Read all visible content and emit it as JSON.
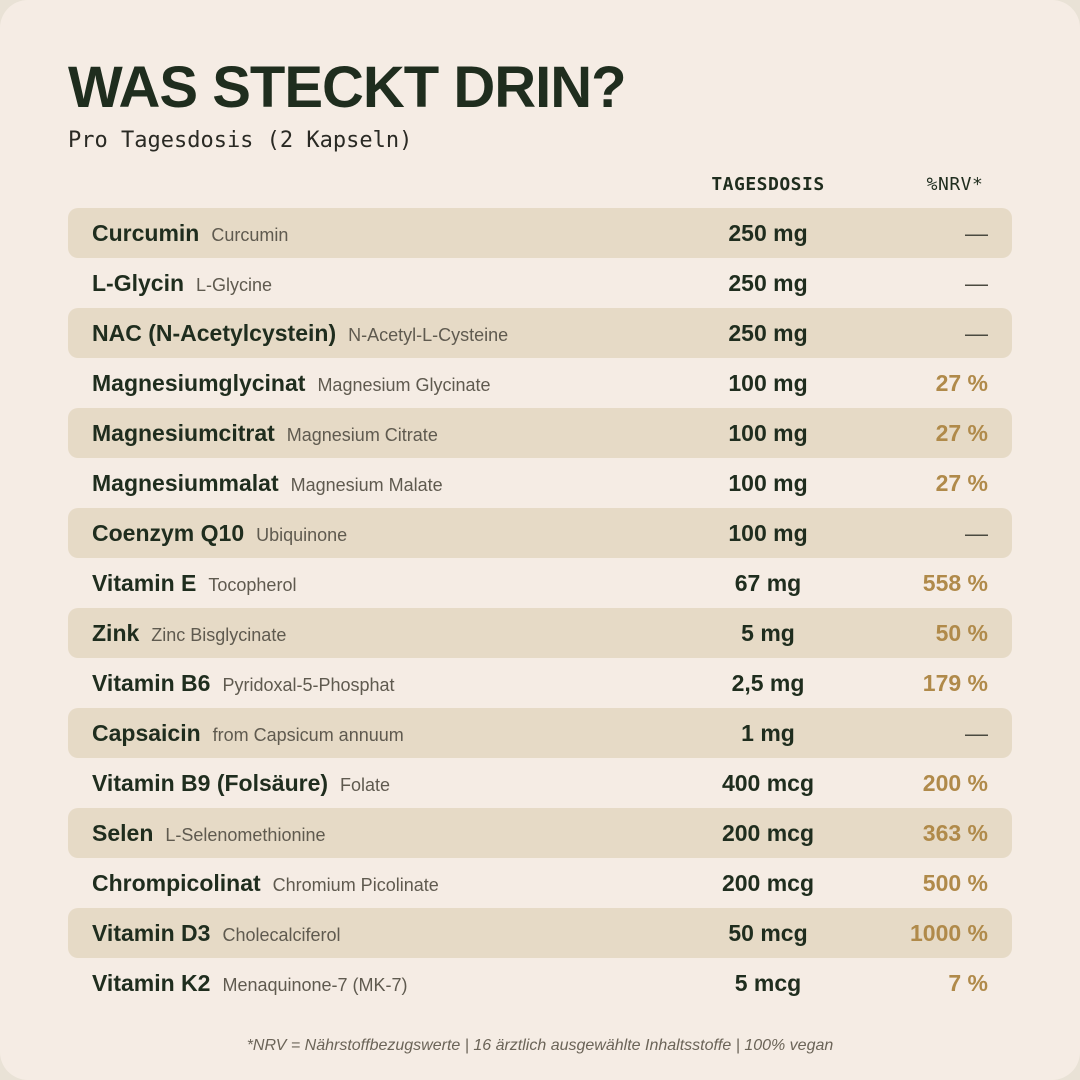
{
  "title": "WAS STECKT DRIN?",
  "subtitle": "Pro Tagesdosis (2 Kapseln)",
  "columns": {
    "dose": "TAGESDOSIS",
    "nrv": "%NRV*"
  },
  "rows": [
    {
      "de": "Curcumin",
      "en": "Curcumin",
      "dose": "250 mg",
      "nrv": "—"
    },
    {
      "de": "L-Glycin",
      "en": "L-Glycine",
      "dose": "250 mg",
      "nrv": "—"
    },
    {
      "de": "NAC (N-Acetylcystein)",
      "en": "N-Acetyl-L-Cysteine",
      "dose": "250 mg",
      "nrv": "—"
    },
    {
      "de": "Magnesiumglycinat",
      "en": "Magnesium Glycinate",
      "dose": "100 mg",
      "nrv": "27 %"
    },
    {
      "de": "Magnesiumcitrat",
      "en": "Magnesium Citrate",
      "dose": "100 mg",
      "nrv": "27 %"
    },
    {
      "de": "Magnesiummalat",
      "en": "Magnesium Malate",
      "dose": "100 mg",
      "nrv": "27 %"
    },
    {
      "de": "Coenzym Q10",
      "en": "Ubiquinone",
      "dose": "100 mg",
      "nrv": "—"
    },
    {
      "de": "Vitamin E",
      "en": "Tocopherol",
      "dose": "67 mg",
      "nrv": "558 %"
    },
    {
      "de": "Zink",
      "en": "Zinc Bisglycinate",
      "dose": "5 mg",
      "nrv": "50 %"
    },
    {
      "de": "Vitamin B6",
      "en": "Pyridoxal-5-Phosphat",
      "dose": "2,5 mg",
      "nrv": "179 %"
    },
    {
      "de": "Capsaicin",
      "en": "from Capsicum annuum",
      "dose": "1 mg",
      "nrv": "—"
    },
    {
      "de": "Vitamin B9 (Folsäure)",
      "en": "Folate",
      "dose": "400 mcg",
      "nrv": "200 %"
    },
    {
      "de": "Selen",
      "en": "L-Selenomethionine",
      "dose": "200 mcg",
      "nrv": "363 %"
    },
    {
      "de": "Chrompicolinat",
      "en": "Chromium Picolinate",
      "dose": "200 mcg",
      "nrv": "500 %"
    },
    {
      "de": "Vitamin D3",
      "en": "Cholecalciferol",
      "dose": "50 mcg",
      "nrv": "1000 %"
    },
    {
      "de": "Vitamin K2",
      "en": "Menaquinone-7 (MK-7)",
      "dose": "5 mcg",
      "nrv": "7 %"
    }
  ],
  "footnote": "*NRV = Nährstoffbezugswerte  |  16 ärztlich ausgewählte Inhaltsstoffe  |  100% vegan",
  "colors": {
    "background": "#f5ece4",
    "row_shade": "#e6dac6",
    "text_dark": "#1f2d1e",
    "accent_nrv": "#b08a4a"
  }
}
